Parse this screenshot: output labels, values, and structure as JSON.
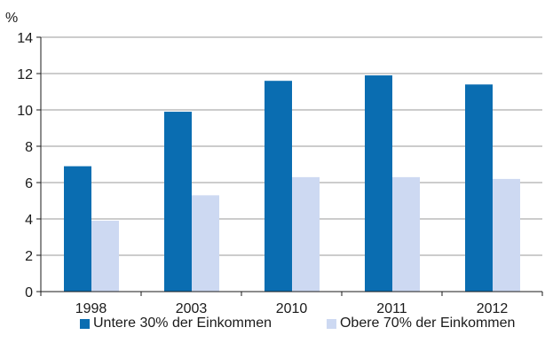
{
  "chart_data": {
    "type": "bar",
    "ylabel": "%",
    "ylim": [
      0,
      14
    ],
    "yticks": [
      0,
      2,
      4,
      6,
      8,
      10,
      12,
      14
    ],
    "grid": true,
    "legend_position": "bottom",
    "categories": [
      "1998",
      "2003",
      "2010",
      "2011",
      "2012"
    ],
    "series": [
      {
        "name": "Untere 30% der Einkommen",
        "color": "#0a6db1",
        "values": [
          6.9,
          9.9,
          11.6,
          11.9,
          11.4
        ]
      },
      {
        "name": "Obere 70% der Einkommen",
        "color": "#cdd9f2",
        "values": [
          3.9,
          5.3,
          6.3,
          6.3,
          6.2
        ]
      }
    ]
  }
}
